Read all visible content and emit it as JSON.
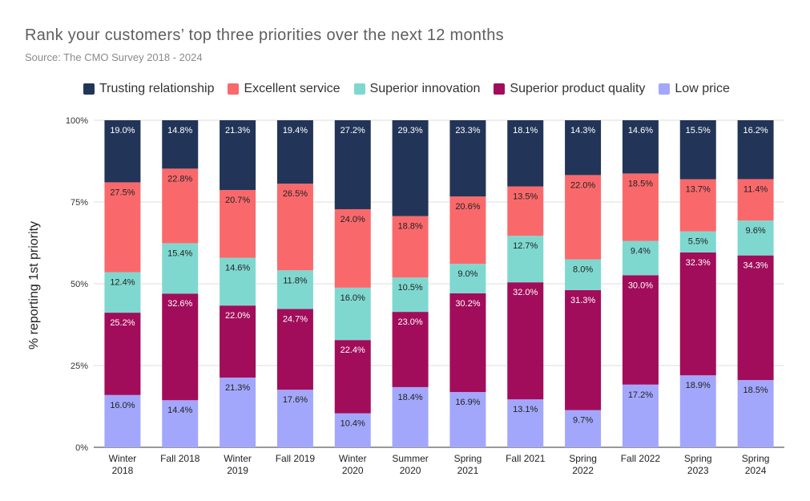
{
  "chart_data": {
    "type": "bar",
    "stacked": true,
    "normalized": true,
    "title": "Rank your customers’ top three priorities over the next 12 months",
    "subtitle": "Source: The CMO Survey 2018 - 2024",
    "ylabel": "% reporting 1st priority",
    "xlabel": "",
    "ylim": [
      0,
      100
    ],
    "yticks": [
      "0%",
      "25%",
      "50%",
      "75%",
      "100%"
    ],
    "ytick_values": [
      0,
      25,
      50,
      75,
      100
    ],
    "legend_position": "top",
    "categories": [
      [
        "Winter",
        "2018"
      ],
      [
        "Fall 2018"
      ],
      [
        "Winter",
        "2019"
      ],
      [
        "Fall 2019"
      ],
      [
        "Winter",
        "2020"
      ],
      [
        "Summer",
        "2020"
      ],
      [
        "Spring",
        "2021"
      ],
      [
        "Fall 2021"
      ],
      [
        "Spring",
        "2022"
      ],
      [
        "Fall 2022"
      ],
      [
        "Spring",
        "2023"
      ],
      [
        "Spring",
        "2024"
      ]
    ],
    "series": [
      {
        "name": "Low price",
        "color": "#a3a7fb",
        "values": [
          16.0,
          14.4,
          21.3,
          17.6,
          10.4,
          18.4,
          16.9,
          13.1,
          9.7,
          17.2,
          18.9,
          18.5
        ],
        "labels": [
          "16.0%",
          "14.4%",
          "21.3%",
          "17.6%",
          "10.4%",
          "18.4%",
          "16.9%",
          "13.1%",
          "9.7%",
          "17.2%",
          "18.9%",
          "18.5%"
        ]
      },
      {
        "name": "Superior product quality",
        "color": "#a10d5a",
        "values": [
          25.2,
          32.6,
          22.0,
          24.7,
          22.4,
          23.0,
          30.2,
          32.0,
          31.3,
          30.0,
          32.3,
          34.3
        ],
        "labels": [
          "25.2%",
          "32.6%",
          "22.0%",
          "24.7%",
          "22.4%",
          "23.0%",
          "30.2%",
          "32.0%",
          "31.3%",
          "30.0%",
          "32.3%",
          "34.3%"
        ]
      },
      {
        "name": "Superior innovation",
        "color": "#7fd8d0",
        "values": [
          12.4,
          15.4,
          14.6,
          11.8,
          16.0,
          10.5,
          9.0,
          12.7,
          8.0,
          9.4,
          5.5,
          9.6
        ],
        "labels": [
          "12.4%",
          "15.4%",
          "14.6%",
          "11.8%",
          "16.0%",
          "10.5%",
          "9.0%",
          "12.7%",
          "8.0%",
          "9.4%",
          "5.5%",
          "9.6%"
        ]
      },
      {
        "name": "Excellent service",
        "color": "#f9696c",
        "values": [
          27.5,
          22.8,
          20.7,
          26.5,
          24.0,
          18.8,
          20.6,
          13.5,
          22.0,
          18.5,
          13.7,
          11.4
        ],
        "labels": [
          "27.5%",
          "22.8%",
          "20.7%",
          "26.5%",
          "24.0%",
          "18.8%",
          "20.6%",
          "13.5%",
          "22.0%",
          "18.5%",
          "13.7%",
          "11.4%"
        ]
      },
      {
        "name": "Trusting relationship",
        "color": "#223558",
        "values": [
          19.0,
          14.8,
          21.3,
          19.4,
          27.2,
          29.3,
          23.3,
          18.1,
          14.3,
          14.6,
          15.5,
          16.2
        ],
        "labels": [
          "19.0%",
          "14.8%",
          "21.3%",
          "19.4%",
          "27.2%",
          "29.3%",
          "23.3%",
          "18.1%",
          "14.3%",
          "14.6%",
          "15.5%",
          "16.2%"
        ]
      }
    ],
    "legend_order": [
      "Trusting relationship",
      "Excellent service",
      "Superior innovation",
      "Superior product quality",
      "Low price"
    ]
  }
}
